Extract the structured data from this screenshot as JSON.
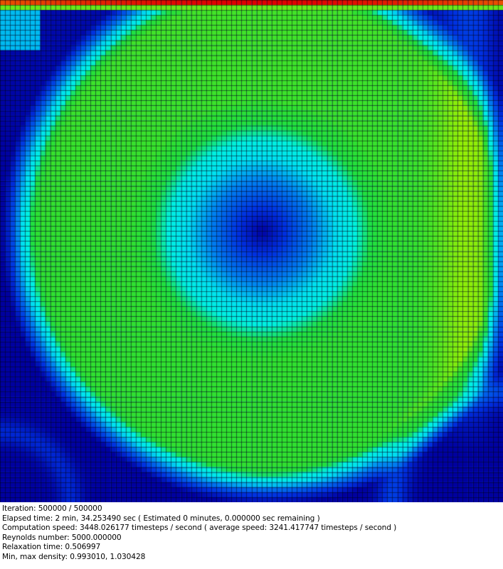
{
  "simulation": {
    "colormap": [
      "#0000a0",
      "#0030e0",
      "#00c8f0",
      "#00f0f0",
      "#20e020",
      "#30e030",
      "#c0f000",
      "#f0f000",
      "#f08000",
      "#e00000"
    ],
    "grid_line_color": "#000000"
  },
  "status": {
    "iteration": "Iteration: 500000 / 500000",
    "elapsed": "Elapsed time: 2 min, 34.253490 sec ( Estimated 0 minutes, 0.000000 sec remaining )",
    "speed": "Computation speed: 3448.026177 timesteps / second ( average speed: 3241.417747 timesteps / second )",
    "reynolds": "Reynolds number: 5000.000000",
    "relaxation": "Relaxation time: 0.506997",
    "density": "Min, max density: 0.993010, 1.030428"
  }
}
